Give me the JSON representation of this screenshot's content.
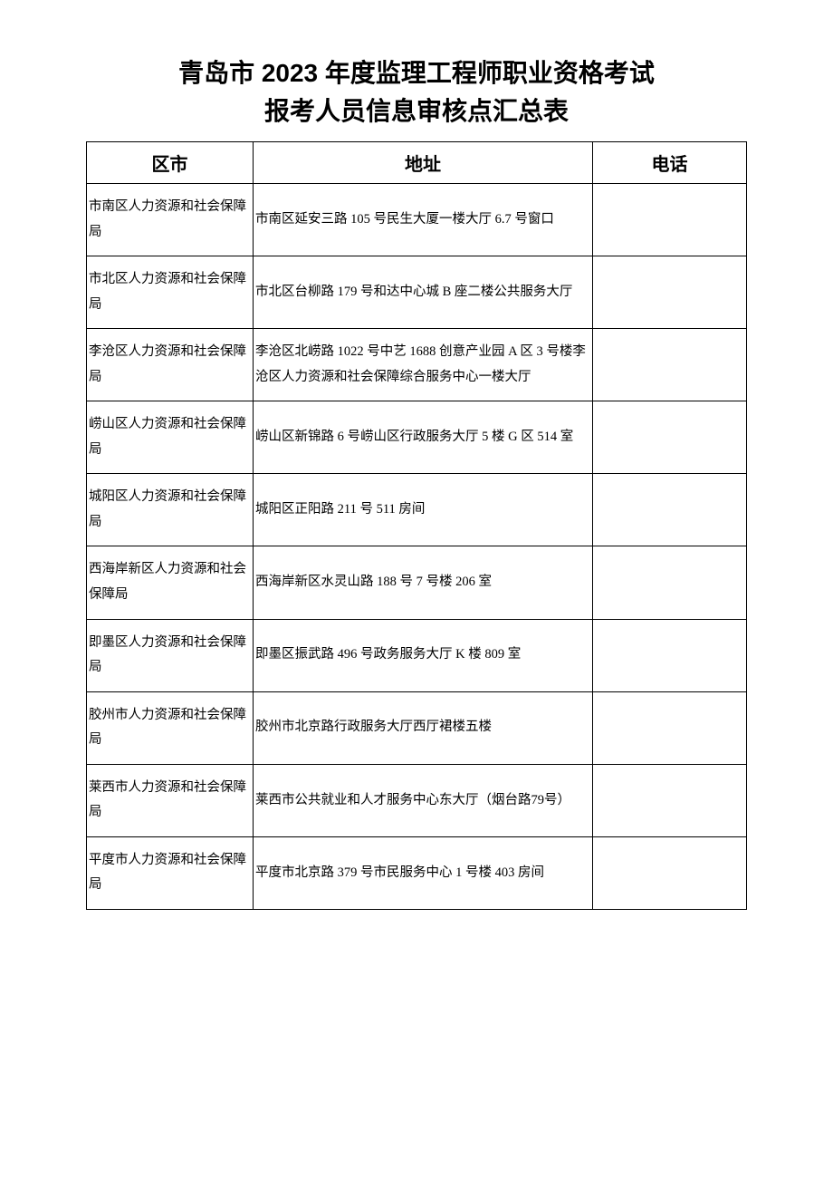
{
  "title_line1": "青岛市 2023 年度监理工程师职业资格考试",
  "title_line2": "报考人员信息审核点汇总表",
  "columns": {
    "district": "区市",
    "address": "地址",
    "phone": "电话"
  },
  "rows": [
    {
      "district": "市南区人力资源和社会保障局",
      "address": "市南区延安三路 105 号民生大厦一楼大厅 6.7 号窗口",
      "phone": ""
    },
    {
      "district": "市北区人力资源和社会保障局",
      "address": "市北区台柳路 179 号和达中心城 B 座二楼公共服务大厅",
      "phone": ""
    },
    {
      "district": "李沧区人力资源和社会保障局",
      "address": "李沧区北崂路 1022 号中艺 1688 创意产业园 A 区 3 号楼李沧区人力资源和社会保障综合服务中心一楼大厅",
      "phone": ""
    },
    {
      "district": "崂山区人力资源和社会保障局",
      "address": "崂山区新锦路 6 号崂山区行政服务大厅 5 楼 G 区 514 室",
      "phone": ""
    },
    {
      "district": "城阳区人力资源和社会保障局",
      "address": "城阳区正阳路 211 号 511 房间",
      "phone": ""
    },
    {
      "district": "西海岸新区人力资源和社会保障局",
      "address": "西海岸新区水灵山路 188 号 7 号楼 206 室",
      "phone": ""
    },
    {
      "district": "即墨区人力资源和社会保障局",
      "address": "即墨区振武路 496 号政务服务大厅 K 楼 809 室",
      "phone": ""
    },
    {
      "district": "胶州市人力资源和社会保障局",
      "address": "胶州市北京路行政服务大厅西厅裙楼五楼",
      "phone": ""
    },
    {
      "district": "莱西市人力资源和社会保障局",
      "address": "莱西市公共就业和人才服务中心东大厅（烟台路79号）",
      "phone": ""
    },
    {
      "district": "平度市人力资源和社会保障局",
      "address": "平度市北京路 379 号市民服务中心 1 号楼 403 房间",
      "phone": ""
    }
  ]
}
